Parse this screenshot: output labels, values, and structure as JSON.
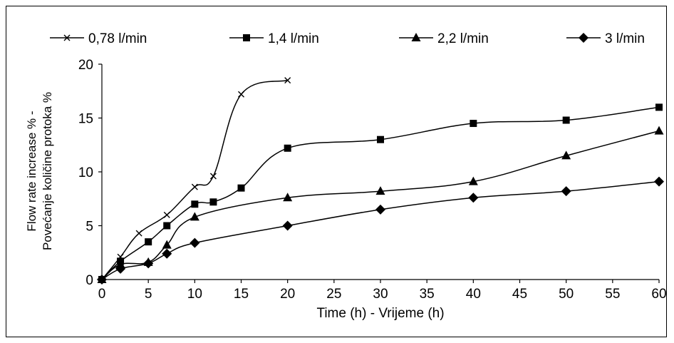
{
  "chart_data": {
    "type": "line",
    "title": "",
    "xlabel": "Time  (h) - Vrijeme (h)",
    "ylabel_lines": [
      "Flow rate increase % -",
      "Povećanje količine protoka %"
    ],
    "xlim": [
      0,
      60
    ],
    "ylim": [
      0,
      20
    ],
    "x_ticks": [
      "0",
      "5",
      "10",
      "15",
      "20",
      "25",
      "30",
      "35",
      "40",
      "45",
      "50",
      "55",
      "60"
    ],
    "y_ticks": [
      "0",
      "5",
      "10",
      "15",
      "20"
    ],
    "grid": false,
    "legend_position": "top",
    "series": [
      {
        "name": "0,78 l/min",
        "marker": "x",
        "x": [
          0,
          2,
          4,
          7,
          10,
          12,
          15,
          20
        ],
        "y": [
          0,
          2.1,
          4.3,
          6.0,
          8.6,
          9.6,
          17.2,
          18.5
        ]
      },
      {
        "name": "1,4 l/min",
        "marker": "square",
        "x": [
          0,
          2,
          5,
          7,
          10,
          12,
          15,
          20,
          30,
          40,
          50,
          60
        ],
        "y": [
          0,
          1.7,
          3.5,
          5.0,
          7.0,
          7.2,
          8.5,
          12.2,
          13.0,
          14.5,
          14.8,
          16.0
        ]
      },
      {
        "name": "2,2 l/min",
        "marker": "triangle",
        "x": [
          0,
          2,
          5,
          7,
          10,
          20,
          30,
          40,
          50,
          60
        ],
        "y": [
          0,
          1.4,
          1.6,
          3.2,
          5.8,
          7.6,
          8.2,
          9.1,
          11.5,
          13.8
        ]
      },
      {
        "name": "3 l/min",
        "marker": "diamond",
        "x": [
          0,
          2,
          5,
          7,
          10,
          20,
          30,
          40,
          50,
          60
        ],
        "y": [
          0,
          1.0,
          1.5,
          2.4,
          3.4,
          5.0,
          6.5,
          7.6,
          8.2,
          9.1
        ]
      }
    ]
  }
}
